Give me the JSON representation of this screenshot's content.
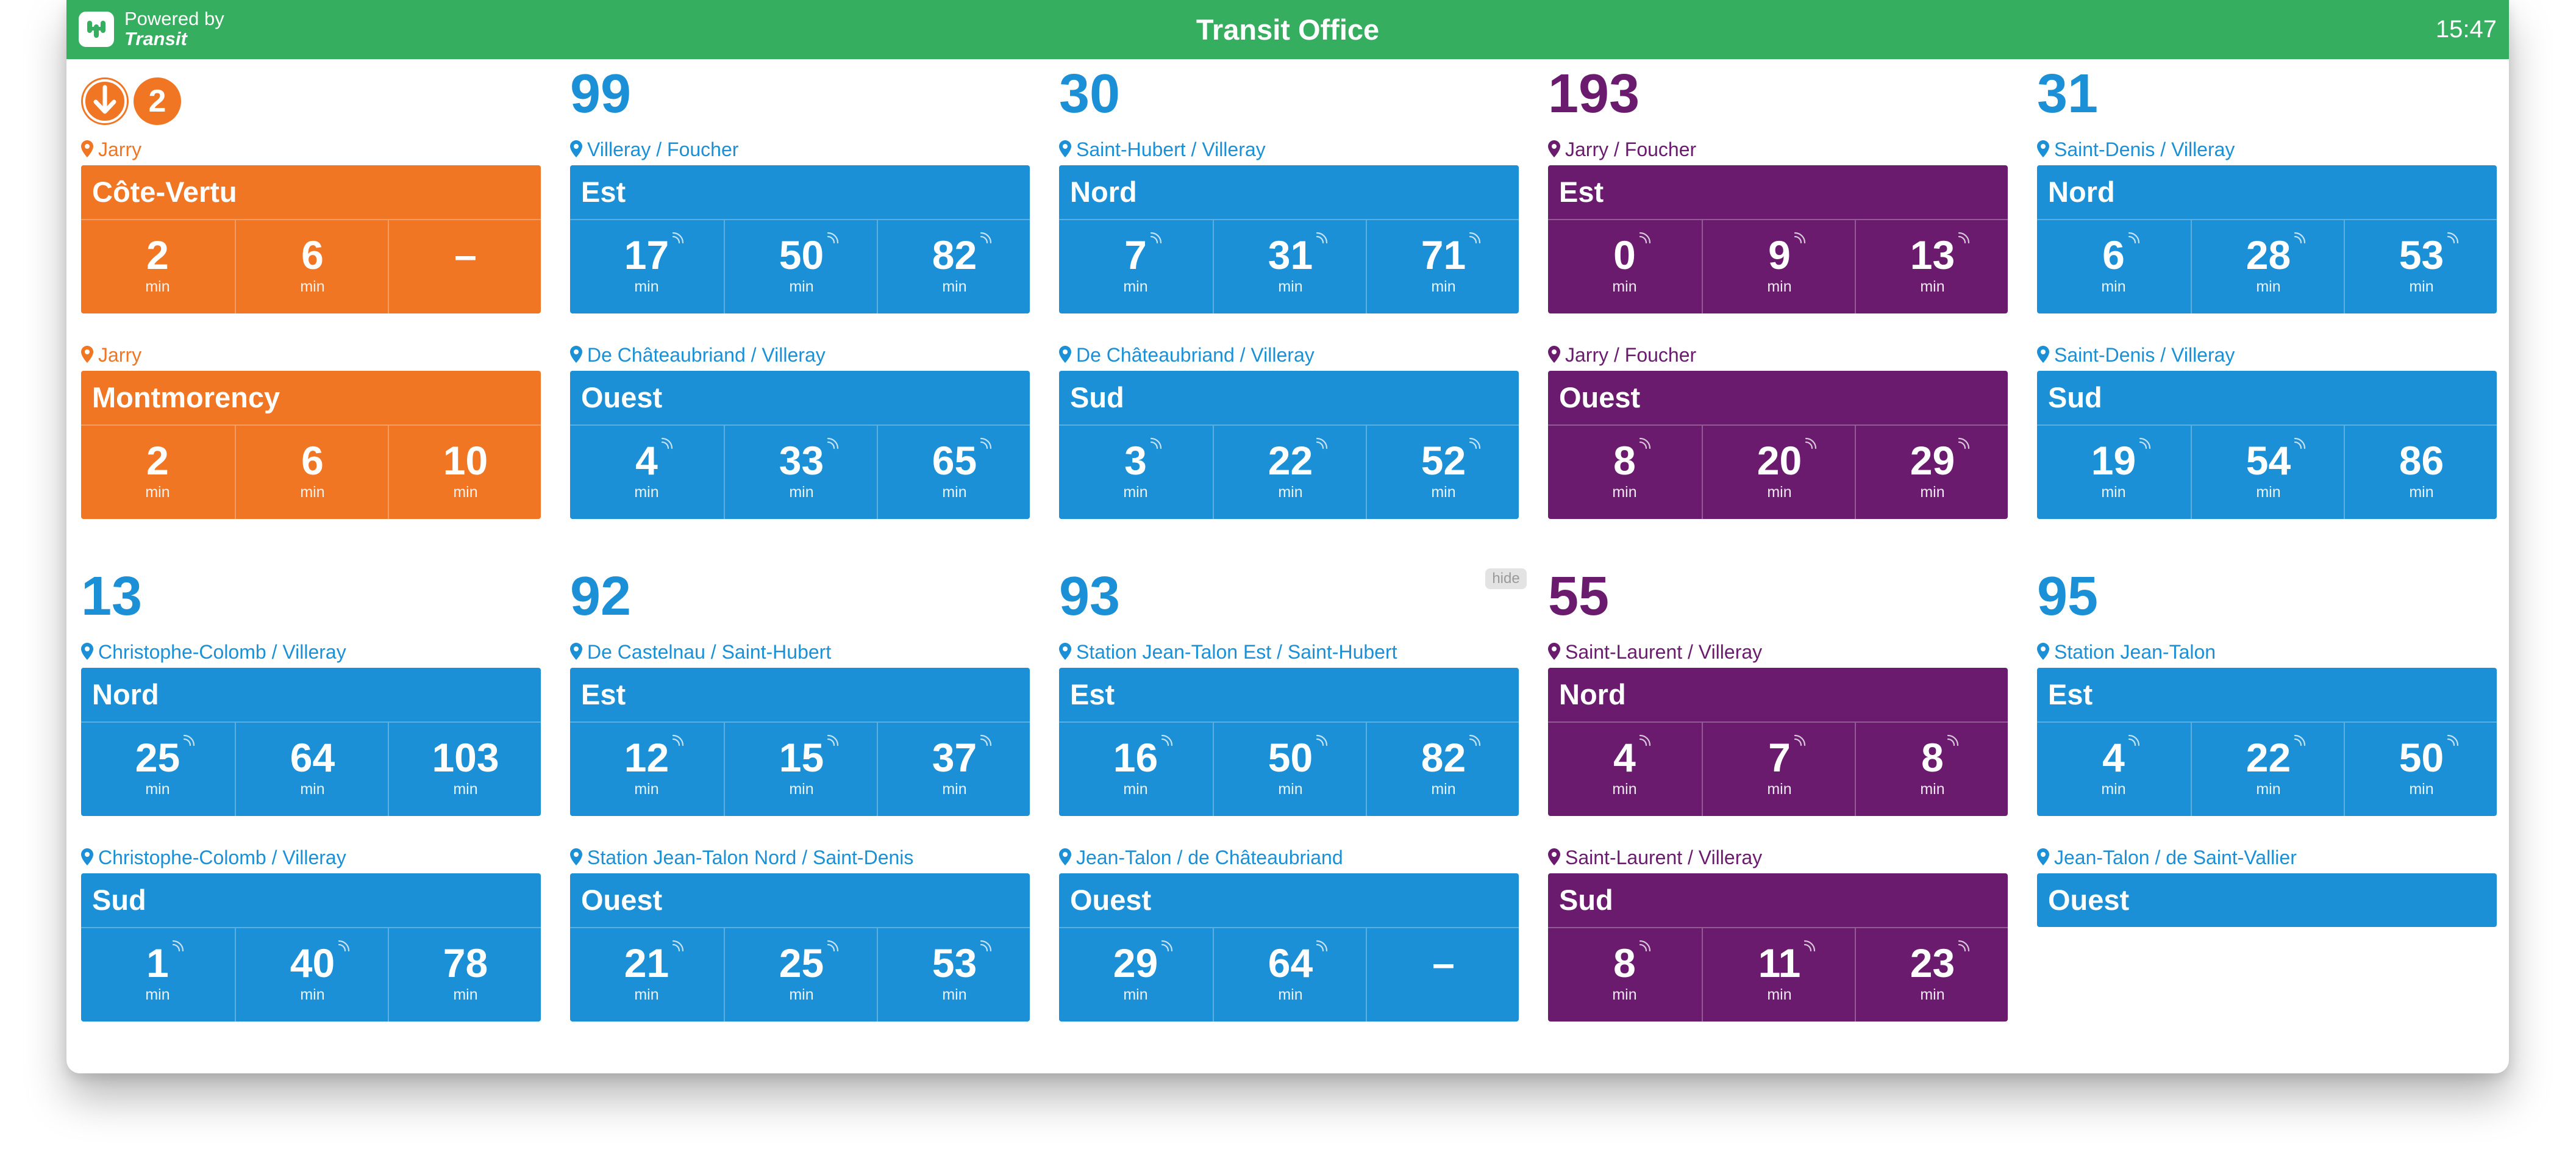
{
  "header": {
    "powered_by": "Powered by",
    "brand": "Transit",
    "title": "Transit Office",
    "time": "15:47"
  },
  "colors": {
    "header": "#35ae5f",
    "metro": "#f07624",
    "bus": "#1b90d6",
    "bus_purple": "#6a1b6e"
  },
  "metro": {
    "icon": "metro-arrow-icon",
    "line": "2",
    "directions": [
      {
        "stop": "Jarry",
        "direction": "Côte-Vertu",
        "times": [
          "2",
          "6",
          "–"
        ],
        "unit": "min"
      },
      {
        "stop": "Jarry",
        "direction": "Montmorency",
        "times": [
          "2",
          "6",
          "10"
        ],
        "unit": "min"
      }
    ]
  },
  "routes": [
    {
      "number": "99",
      "color": "blue",
      "directions": [
        {
          "stop": "Villeray / Foucher",
          "direction": "Est",
          "times": [
            "17",
            "50",
            "82"
          ],
          "realtime": [
            true,
            true,
            true
          ],
          "unit": "min"
        },
        {
          "stop": "De Châteaubriand / Villeray",
          "direction": "Ouest",
          "times": [
            "4",
            "33",
            "65"
          ],
          "realtime": [
            true,
            true,
            true
          ],
          "unit": "min"
        }
      ]
    },
    {
      "number": "30",
      "color": "blue",
      "directions": [
        {
          "stop": "Saint-Hubert / Villeray",
          "direction": "Nord",
          "times": [
            "7",
            "31",
            "71"
          ],
          "realtime": [
            true,
            true,
            true
          ],
          "unit": "min"
        },
        {
          "stop": "De Châteaubriand / Villeray",
          "direction": "Sud",
          "times": [
            "3",
            "22",
            "52"
          ],
          "realtime": [
            true,
            true,
            true
          ],
          "unit": "min"
        }
      ]
    },
    {
      "number": "193",
      "color": "purple",
      "directions": [
        {
          "stop": "Jarry / Foucher",
          "direction": "Est",
          "times": [
            "0",
            "9",
            "13"
          ],
          "realtime": [
            true,
            true,
            true
          ],
          "unit": "min"
        },
        {
          "stop": "Jarry / Foucher",
          "direction": "Ouest",
          "times": [
            "8",
            "20",
            "29"
          ],
          "realtime": [
            true,
            true,
            true
          ],
          "unit": "min"
        }
      ]
    },
    {
      "number": "31",
      "color": "blue",
      "directions": [
        {
          "stop": "Saint-Denis / Villeray",
          "direction": "Nord",
          "times": [
            "6",
            "28",
            "53"
          ],
          "realtime": [
            true,
            true,
            true
          ],
          "unit": "min"
        },
        {
          "stop": "Saint-Denis / Villeray",
          "direction": "Sud",
          "times": [
            "19",
            "54",
            "86"
          ],
          "realtime": [
            true,
            true,
            false
          ],
          "unit": "min"
        }
      ]
    },
    {
      "number": "13",
      "color": "blue",
      "directions": [
        {
          "stop": "Christophe-Colomb / Villeray",
          "direction": "Nord",
          "times": [
            "25",
            "64",
            "103"
          ],
          "realtime": [
            true,
            false,
            false
          ],
          "unit": "min"
        },
        {
          "stop": "Christophe-Colomb / Villeray",
          "direction": "Sud",
          "times": [
            "1",
            "40",
            "78"
          ],
          "realtime": [
            true,
            true,
            false
          ],
          "unit": "min"
        }
      ]
    },
    {
      "number": "92",
      "color": "blue",
      "directions": [
        {
          "stop": "De Castelnau / Saint-Hubert",
          "direction": "Est",
          "times": [
            "12",
            "15",
            "37"
          ],
          "realtime": [
            true,
            true,
            true
          ],
          "unit": "min"
        },
        {
          "stop": "Station Jean-Talon Nord / Saint-Denis",
          "direction": "Ouest",
          "times": [
            "21",
            "25",
            "53"
          ],
          "realtime": [
            true,
            true,
            true
          ],
          "unit": "min"
        }
      ]
    },
    {
      "number": "93",
      "color": "blue",
      "hide_label": "hide",
      "directions": [
        {
          "stop": "Station Jean-Talon Est / Saint-Hubert",
          "direction": "Est",
          "times": [
            "16",
            "50",
            "82"
          ],
          "realtime": [
            true,
            true,
            true
          ],
          "unit": "min"
        },
        {
          "stop": "Jean-Talon / de Châteaubriand",
          "direction": "Ouest",
          "times": [
            "29",
            "64",
            "–"
          ],
          "realtime": [
            true,
            true,
            false
          ],
          "unit": "min"
        }
      ]
    },
    {
      "number": "55",
      "color": "purple",
      "directions": [
        {
          "stop": "Saint-Laurent / Villeray",
          "direction": "Nord",
          "times": [
            "4",
            "7",
            "8"
          ],
          "realtime": [
            true,
            true,
            true
          ],
          "unit": "min"
        },
        {
          "stop": "Saint-Laurent / Villeray",
          "direction": "Sud",
          "times": [
            "8",
            "11",
            "23"
          ],
          "realtime": [
            true,
            true,
            true
          ],
          "unit": "min"
        }
      ]
    },
    {
      "number": "95",
      "color": "blue",
      "directions": [
        {
          "stop": "Station Jean-Talon",
          "direction": "Est",
          "times": [
            "4",
            "22",
            "50"
          ],
          "realtime": [
            true,
            true,
            true
          ],
          "unit": "min"
        },
        {
          "stop": "Jean-Talon / de Saint-Vallier",
          "direction": "Ouest",
          "times": [],
          "realtime": [],
          "unit": "min"
        }
      ]
    }
  ]
}
